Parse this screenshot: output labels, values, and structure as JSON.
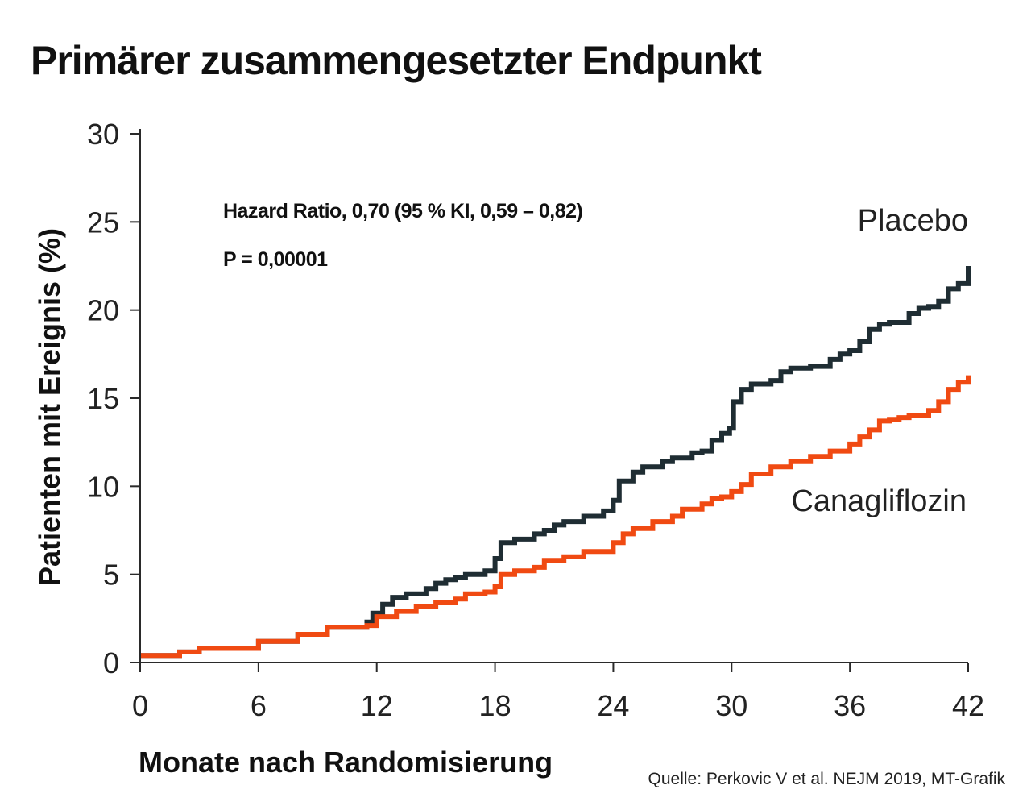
{
  "chart_data": {
    "type": "line",
    "title": "Primärer zusammengesetzter Endpunkt",
    "xlabel": "Monate nach Randomisierung",
    "ylabel": "Patienten mit Ereignis (%)",
    "xlim": [
      0,
      42
    ],
    "ylim": [
      0,
      30
    ],
    "xticks": [
      0,
      6,
      12,
      18,
      24,
      30,
      36,
      42
    ],
    "yticks": [
      0,
      5,
      10,
      15,
      20,
      25,
      30
    ],
    "grid": false,
    "legend": "inline labels at line ends (right)",
    "annotations": [
      "Hazard Ratio, 0,70 (95 % KI, 0,59 – 0,82)",
      "P = 0,00001"
    ],
    "source": "Quelle: Perkovic V et al. NEJM 2019, MT-Grafik",
    "series": [
      {
        "name": "Placebo",
        "color": "#1f2d33",
        "x": [
          0,
          2,
          3,
          6,
          8,
          9.5,
          11.5,
          11.8,
          12.3,
          12.8,
          13.5,
          14.5,
          15,
          15.5,
          16,
          16.5,
          17.5,
          18,
          18.3,
          19,
          20,
          20.5,
          21,
          21.5,
          22.5,
          23.5,
          24,
          24.3,
          25,
          25.5,
          26.5,
          27,
          28,
          28.5,
          29,
          29.5,
          29.9,
          30.1,
          30.5,
          31,
          32,
          32.5,
          33,
          34,
          35,
          35.5,
          36,
          36.5,
          37,
          37.5,
          38,
          39,
          39.5,
          40,
          40.5,
          41,
          41.5,
          42
        ],
        "y": [
          0.4,
          0.6,
          0.8,
          1.2,
          1.6,
          2.0,
          2.3,
          2.8,
          3.3,
          3.7,
          3.9,
          4.2,
          4.5,
          4.7,
          4.8,
          5.0,
          5.2,
          5.9,
          6.8,
          7.0,
          7.3,
          7.5,
          7.8,
          8.0,
          8.3,
          8.6,
          9.2,
          10.3,
          10.8,
          11.1,
          11.4,
          11.6,
          11.9,
          12.0,
          12.6,
          13.0,
          13.3,
          14.8,
          15.5,
          15.8,
          16.0,
          16.5,
          16.7,
          16.8,
          17.2,
          17.5,
          17.7,
          18.2,
          18.9,
          19.2,
          19.3,
          19.8,
          20.1,
          20.2,
          20.5,
          21.2,
          21.5,
          22.5
        ]
      },
      {
        "name": "Canagliflozin",
        "color": "#f04a12",
        "x": [
          0,
          2,
          3,
          6,
          8,
          9.5,
          11.5,
          12,
          13,
          14,
          15,
          16,
          16.5,
          17.5,
          18,
          18.3,
          19,
          20,
          20.5,
          21.5,
          22.5,
          24,
          24.5,
          25,
          26,
          27,
          27.5,
          28.5,
          29,
          29.5,
          30,
          30.5,
          31,
          32,
          33,
          34,
          35,
          36,
          36.5,
          37,
          37.5,
          38,
          38.5,
          39,
          40,
          40.5,
          41,
          41.5,
          42
        ],
        "y": [
          0.4,
          0.6,
          0.8,
          1.2,
          1.6,
          2.0,
          2.1,
          2.6,
          2.9,
          3.2,
          3.4,
          3.6,
          3.9,
          4.0,
          4.3,
          5.0,
          5.2,
          5.4,
          5.8,
          6.0,
          6.3,
          6.8,
          7.3,
          7.6,
          8.0,
          8.3,
          8.7,
          9.0,
          9.3,
          9.4,
          9.7,
          10.1,
          10.7,
          11.1,
          11.4,
          11.7,
          12.0,
          12.4,
          12.8,
          13.2,
          13.7,
          13.8,
          13.9,
          14.0,
          14.3,
          14.8,
          15.5,
          15.9,
          16.3
        ]
      }
    ]
  }
}
